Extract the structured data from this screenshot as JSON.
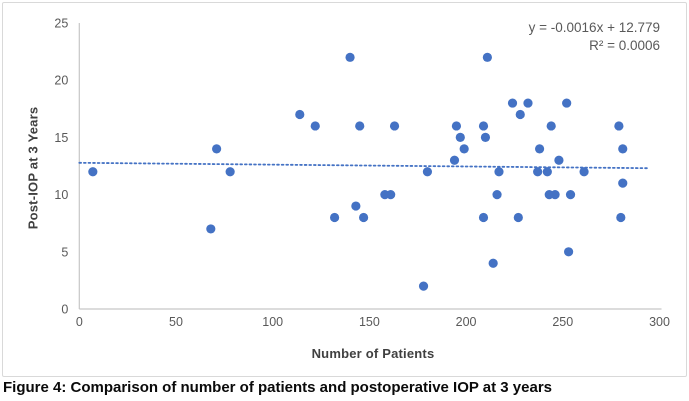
{
  "figure": {
    "caption": "Figure 4: Comparison of number of patients and postoperative IOP at 3 years"
  },
  "equation": {
    "line1": "y = -0.0016x + 12.779",
    "line2": "R² = 0.0006"
  },
  "chart_data": {
    "type": "scatter",
    "title": "",
    "xlabel": "Number of Patients",
    "ylabel": "Post-IOP at 3 Years",
    "xlim": [
      0,
      300
    ],
    "ylim": [
      0,
      25
    ],
    "x_ticks": [
      0,
      50,
      100,
      150,
      200,
      250,
      300
    ],
    "y_ticks": [
      0,
      5,
      10,
      15,
      20,
      25
    ],
    "grid": false,
    "legend": "none",
    "point_color": "#4472C4",
    "trendline_color": "#4472C4",
    "axis_line_color": "#c6c6c6",
    "tick_label_color": "#595959",
    "axis_title_color": "#404040",
    "points": [
      [
        7,
        12
      ],
      [
        68,
        7
      ],
      [
        71,
        14
      ],
      [
        78,
        12
      ],
      [
        114,
        17
      ],
      [
        122,
        16
      ],
      [
        132,
        8
      ],
      [
        140,
        22
      ],
      [
        143,
        9
      ],
      [
        145,
        16
      ],
      [
        147,
        8
      ],
      [
        158,
        10
      ],
      [
        161,
        10
      ],
      [
        163,
        16
      ],
      [
        178,
        2
      ],
      [
        180,
        12
      ],
      [
        194,
        13
      ],
      [
        195,
        16
      ],
      [
        197,
        15
      ],
      [
        199,
        14
      ],
      [
        209,
        8
      ],
      [
        209,
        16
      ],
      [
        210,
        15
      ],
      [
        211,
        22
      ],
      [
        214,
        4
      ],
      [
        216,
        10
      ],
      [
        217,
        12
      ],
      [
        224,
        18
      ],
      [
        227,
        8
      ],
      [
        228,
        17
      ],
      [
        232,
        18
      ],
      [
        237,
        12
      ],
      [
        238,
        14
      ],
      [
        242,
        12
      ],
      [
        243,
        10
      ],
      [
        244,
        16
      ],
      [
        246,
        10
      ],
      [
        248,
        13
      ],
      [
        252,
        18
      ],
      [
        253,
        5
      ],
      [
        254,
        10
      ],
      [
        261,
        12
      ],
      [
        279,
        16
      ],
      [
        280,
        8
      ],
      [
        281,
        11
      ],
      [
        281,
        14
      ]
    ],
    "trendline": {
      "slope": -0.0016,
      "intercept": 12.779,
      "r_squared": 0.0006,
      "x_start": 0,
      "x_end": 294,
      "style": "dotted"
    }
  }
}
